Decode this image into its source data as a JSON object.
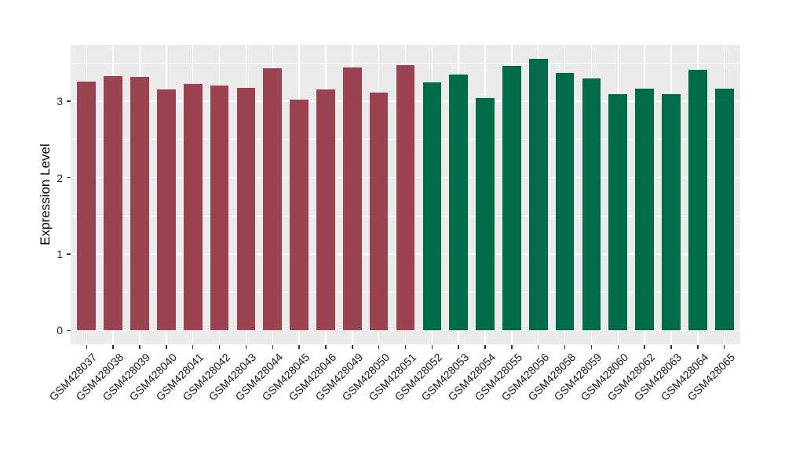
{
  "chart_data": {
    "type": "bar",
    "title": "",
    "xlabel": "",
    "ylabel": "Expression Level",
    "yticks": [
      0,
      1,
      2,
      3
    ],
    "yticks_minor": [
      0.5,
      1.5,
      2.5,
      3.5
    ],
    "ylim": [
      -0.18,
      3.74
    ],
    "grid": "on",
    "legend": "none",
    "panel_bg": "#EBEBEB",
    "grid_color": "#FFFFFF",
    "group_colors": {
      "group1": "#9B4351",
      "group2": "#006B4B"
    },
    "bars": [
      {
        "label": "GSM428037",
        "value": 3.26,
        "group": "group1"
      },
      {
        "label": "GSM428038",
        "value": 3.33,
        "group": "group1"
      },
      {
        "label": "GSM428039",
        "value": 3.32,
        "group": "group1"
      },
      {
        "label": "GSM428040",
        "value": 3.16,
        "group": "group1"
      },
      {
        "label": "GSM428041",
        "value": 3.23,
        "group": "group1"
      },
      {
        "label": "GSM428042",
        "value": 3.21,
        "group": "group1"
      },
      {
        "label": "GSM428043",
        "value": 3.18,
        "group": "group1"
      },
      {
        "label": "GSM428044",
        "value": 3.43,
        "group": "group1"
      },
      {
        "label": "GSM428045",
        "value": 3.02,
        "group": "group1"
      },
      {
        "label": "GSM428046",
        "value": 3.16,
        "group": "group1"
      },
      {
        "label": "GSM428049",
        "value": 3.44,
        "group": "group1"
      },
      {
        "label": "GSM428050",
        "value": 3.11,
        "group": "group1"
      },
      {
        "label": "GSM428051",
        "value": 3.47,
        "group": "group1"
      },
      {
        "label": "GSM428052",
        "value": 3.25,
        "group": "group2"
      },
      {
        "label": "GSM428053",
        "value": 3.35,
        "group": "group2"
      },
      {
        "label": "GSM428054",
        "value": 3.04,
        "group": "group2"
      },
      {
        "label": "GSM428055",
        "value": 3.46,
        "group": "group2"
      },
      {
        "label": "GSM428056",
        "value": 3.56,
        "group": "group2"
      },
      {
        "label": "GSM428058",
        "value": 3.37,
        "group": "group2"
      },
      {
        "label": "GSM428059",
        "value": 3.3,
        "group": "group2"
      },
      {
        "label": "GSM428060",
        "value": 3.09,
        "group": "group2"
      },
      {
        "label": "GSM428062",
        "value": 3.17,
        "group": "group2"
      },
      {
        "label": "GSM428063",
        "value": 3.09,
        "group": "group2"
      },
      {
        "label": "GSM428064",
        "value": 3.41,
        "group": "group2"
      },
      {
        "label": "GSM428065",
        "value": 3.17,
        "group": "group2"
      }
    ]
  }
}
